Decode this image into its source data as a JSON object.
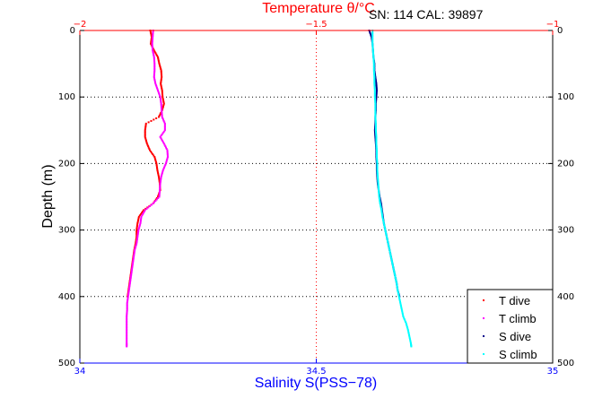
{
  "chart_data": {
    "type": "scatter",
    "title": "Temperature θ/°C",
    "info_text": "SN: 114  CAL: 39897",
    "ylabel": "Depth (m)",
    "x_top_label": "Temperature θ/°C",
    "x_bottom_label": "Salinity S(PSS−78)",
    "y_axis": {
      "ylim": [
        0,
        500
      ],
      "reversed": true,
      "ticks": [
        "0",
        "100",
        "200",
        "300",
        "400",
        "500"
      ]
    },
    "x_top_axis": {
      "xlim": [
        -2,
        -1
      ],
      "ticks": [
        "−2",
        "−1.5",
        "−1"
      ],
      "color": "#ff0000"
    },
    "x_bottom_axis": {
      "xlim": [
        34,
        35
      ],
      "ticks": [
        "34",
        "34.5",
        "35"
      ],
      "color": "#0000ff"
    },
    "grid": true,
    "legend_position": "bottom-right",
    "series": [
      {
        "name": "T dive",
        "axis": "temperature",
        "color": "#ff0000",
        "points": [
          [
            0,
            -1.851
          ],
          [
            10,
            -1.848
          ],
          [
            20,
            -1.85
          ],
          [
            30,
            -1.843
          ],
          [
            40,
            -1.835
          ],
          [
            50,
            -1.832
          ],
          [
            60,
            -1.828
          ],
          [
            70,
            -1.827
          ],
          [
            80,
            -1.829
          ],
          [
            90,
            -1.826
          ],
          [
            100,
            -1.825
          ],
          [
            110,
            -1.822
          ],
          [
            120,
            -1.826
          ],
          [
            130,
            -1.833
          ],
          [
            140,
            -1.86
          ],
          [
            150,
            -1.862
          ],
          [
            160,
            -1.862
          ],
          [
            170,
            -1.858
          ],
          [
            180,
            -1.852
          ],
          [
            190,
            -1.842
          ],
          [
            200,
            -1.838
          ],
          [
            210,
            -1.836
          ],
          [
            220,
            -1.833
          ],
          [
            230,
            -1.831
          ],
          [
            240,
            -1.83
          ],
          [
            250,
            -1.835
          ],
          [
            260,
            -1.845
          ],
          [
            270,
            -1.865
          ],
          [
            280,
            -1.875
          ],
          [
            290,
            -1.878
          ],
          [
            300,
            -1.88
          ],
          [
            310,
            -1.88
          ],
          [
            320,
            -1.882
          ],
          [
            330,
            -1.885
          ],
          [
            340,
            -1.887
          ],
          [
            350,
            -1.889
          ],
          [
            360,
            -1.891
          ],
          [
            370,
            -1.893
          ],
          [
            380,
            -1.895
          ],
          [
            390,
            -1.897
          ],
          [
            400,
            -1.899
          ]
        ]
      },
      {
        "name": "T climb",
        "axis": "temperature",
        "color": "#ff00ff",
        "points": [
          [
            0,
            -1.845
          ],
          [
            10,
            -1.846
          ],
          [
            20,
            -1.847
          ],
          [
            30,
            -1.846
          ],
          [
            40,
            -1.843
          ],
          [
            50,
            -1.842
          ],
          [
            60,
            -1.842
          ],
          [
            70,
            -1.843
          ],
          [
            80,
            -1.84
          ],
          [
            90,
            -1.835
          ],
          [
            100,
            -1.83
          ],
          [
            110,
            -1.828
          ],
          [
            120,
            -1.827
          ],
          [
            130,
            -1.826
          ],
          [
            140,
            -1.82
          ],
          [
            150,
            -1.82
          ],
          [
            160,
            -1.83
          ],
          [
            170,
            -1.822
          ],
          [
            180,
            -1.815
          ],
          [
            190,
            -1.814
          ],
          [
            200,
            -1.818
          ],
          [
            210,
            -1.824
          ],
          [
            220,
            -1.828
          ],
          [
            230,
            -1.83
          ],
          [
            240,
            -1.831
          ],
          [
            250,
            -1.832
          ],
          [
            260,
            -1.845
          ],
          [
            270,
            -1.862
          ],
          [
            280,
            -1.87
          ],
          [
            290,
            -1.872
          ],
          [
            300,
            -1.876
          ],
          [
            310,
            -1.878
          ],
          [
            320,
            -1.88
          ],
          [
            330,
            -1.884
          ],
          [
            340,
            -1.886
          ],
          [
            350,
            -1.888
          ],
          [
            360,
            -1.89
          ],
          [
            370,
            -1.892
          ],
          [
            380,
            -1.894
          ],
          [
            390,
            -1.896
          ],
          [
            400,
            -1.898
          ],
          [
            410,
            -1.9
          ],
          [
            420,
            -1.9
          ],
          [
            430,
            -1.901
          ],
          [
            440,
            -1.901
          ],
          [
            450,
            -1.901
          ],
          [
            460,
            -1.901
          ],
          [
            470,
            -1.901
          ],
          [
            475,
            -1.901
          ]
        ]
      },
      {
        "name": "S dive",
        "axis": "salinity",
        "color": "#00008b",
        "points": [
          [
            0,
            34.612
          ],
          [
            10,
            34.617
          ],
          [
            20,
            34.619
          ],
          [
            30,
            34.62
          ],
          [
            40,
            34.621
          ],
          [
            50,
            34.623
          ],
          [
            60,
            34.623
          ],
          [
            70,
            34.625
          ],
          [
            80,
            34.627
          ],
          [
            90,
            34.628
          ],
          [
            100,
            34.627
          ],
          [
            110,
            34.626
          ],
          [
            120,
            34.626
          ],
          [
            130,
            34.625
          ],
          [
            140,
            34.625
          ],
          [
            150,
            34.624
          ],
          [
            160,
            34.625
          ],
          [
            170,
            34.626
          ],
          [
            180,
            34.627
          ],
          [
            190,
            34.627
          ],
          [
            200,
            34.628
          ],
          [
            210,
            34.628
          ],
          [
            220,
            34.629
          ],
          [
            230,
            34.63
          ],
          [
            240,
            34.632
          ],
          [
            250,
            34.634
          ],
          [
            260,
            34.637
          ],
          [
            270,
            34.639
          ],
          [
            280,
            34.641
          ],
          [
            290,
            34.643
          ],
          [
            300,
            34.646
          ],
          [
            310,
            34.649
          ],
          [
            320,
            34.652
          ],
          [
            330,
            34.655
          ],
          [
            340,
            34.658
          ],
          [
            350,
            34.661
          ],
          [
            360,
            34.664
          ],
          [
            370,
            34.667
          ],
          [
            380,
            34.67
          ],
          [
            390,
            34.672
          ],
          [
            400,
            34.676
          ]
        ]
      },
      {
        "name": "S climb",
        "axis": "salinity",
        "color": "#00ffff",
        "points": [
          [
            0,
            34.619
          ],
          [
            10,
            34.619
          ],
          [
            20,
            34.619
          ],
          [
            30,
            34.62
          ],
          [
            40,
            34.621
          ],
          [
            50,
            34.622
          ],
          [
            60,
            34.622
          ],
          [
            70,
            34.623
          ],
          [
            80,
            34.623
          ],
          [
            90,
            34.624
          ],
          [
            100,
            34.624
          ],
          [
            110,
            34.625
          ],
          [
            120,
            34.625
          ],
          [
            130,
            34.625
          ],
          [
            140,
            34.626
          ],
          [
            150,
            34.626
          ],
          [
            160,
            34.627
          ],
          [
            170,
            34.627
          ],
          [
            180,
            34.628
          ],
          [
            190,
            34.628
          ],
          [
            200,
            34.629
          ],
          [
            210,
            34.629
          ],
          [
            220,
            34.63
          ],
          [
            230,
            34.631
          ],
          [
            240,
            34.632
          ],
          [
            250,
            34.633
          ],
          [
            260,
            34.635
          ],
          [
            270,
            34.638
          ],
          [
            280,
            34.64
          ],
          [
            290,
            34.643
          ],
          [
            300,
            34.646
          ],
          [
            310,
            34.649
          ],
          [
            320,
            34.652
          ],
          [
            330,
            34.655
          ],
          [
            340,
            34.658
          ],
          [
            350,
            34.661
          ],
          [
            360,
            34.664
          ],
          [
            370,
            34.667
          ],
          [
            380,
            34.67
          ],
          [
            390,
            34.672
          ],
          [
            400,
            34.675
          ],
          [
            410,
            34.678
          ],
          [
            420,
            34.681
          ],
          [
            430,
            34.684
          ],
          [
            440,
            34.69
          ],
          [
            450,
            34.694
          ],
          [
            460,
            34.697
          ],
          [
            470,
            34.7
          ],
          [
            475,
            34.701
          ]
        ]
      }
    ]
  }
}
